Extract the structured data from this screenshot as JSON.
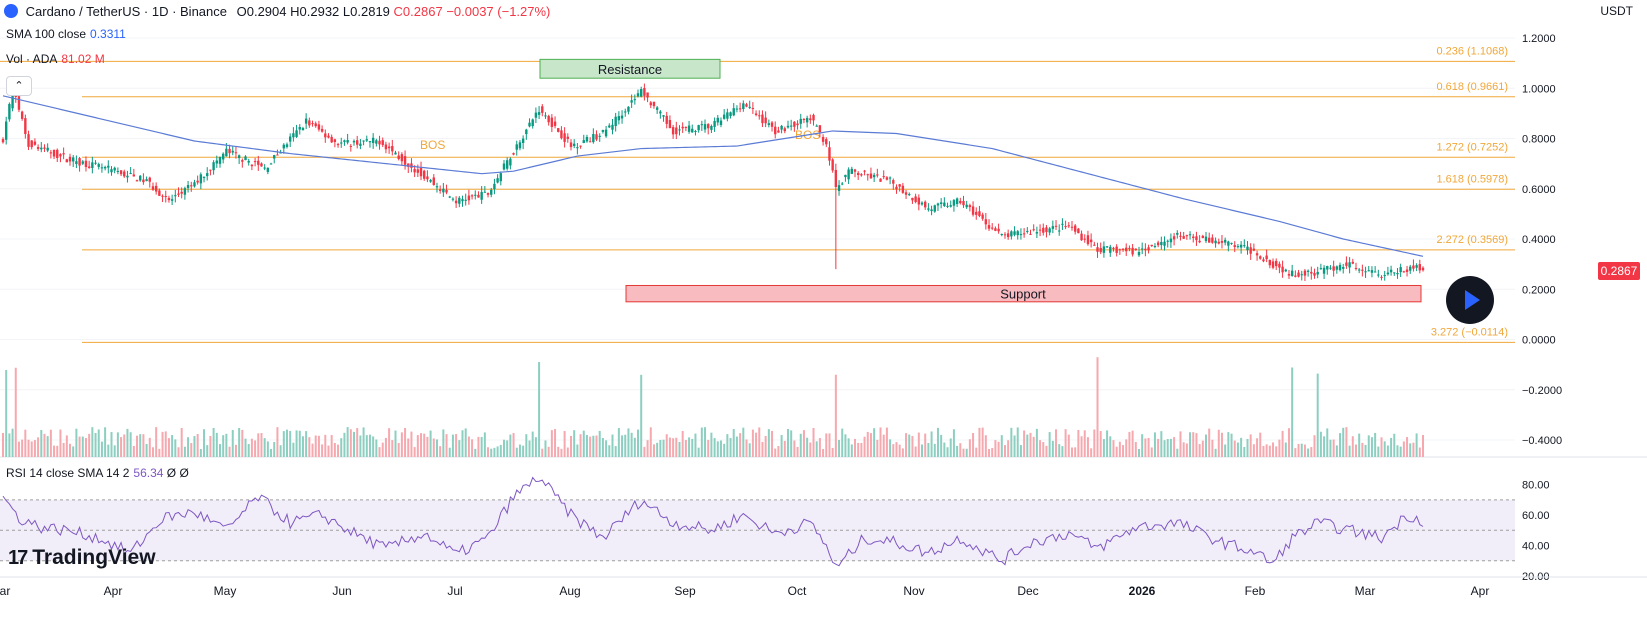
{
  "header": {
    "symbol": "Cardano / TetherUS · 1D · Binance",
    "open": "O0.2904",
    "high": "H0.2932",
    "low": "L0.2819",
    "close": "C0.2867",
    "change": "−0.0037 (−1.27%)"
  },
  "indicators": {
    "sma_label": "SMA 100 close",
    "sma_value": "0.3311",
    "vol_label": "Vol · ADA",
    "vol_value": "81.02 M",
    "rsi_label": "RSI 14 close SMA 14 2",
    "rsi_value": "56.34",
    "rsi_extra": "Ø Ø"
  },
  "currency": "USDT",
  "last_price": "0.2867",
  "brand": "TradingView",
  "icons": {
    "logo": "ada-coin-icon",
    "collapse": "chevron-up-icon",
    "play": "play-icon",
    "brand": "tradingview-logo-icon"
  },
  "colors": {
    "up": "#089981",
    "down": "#f23645",
    "fib": "#f0a73a",
    "sma": "#5b7bd5",
    "rsi": "#7e57c2",
    "resistance_fill": "#c8e6c9",
    "resistance_border": "#4caf50",
    "support_fill": "#f8bbc0",
    "support_border": "#e53935"
  },
  "chart_data": {
    "type": "candlestick",
    "price_axis": {
      "ticks": [
        "1.2000",
        "1.0000",
        "0.8000",
        "0.6000",
        "0.4000",
        "0.2000",
        "0.0000",
        "−0.2000",
        "−0.4000"
      ],
      "tick_values": [
        1.2,
        1.0,
        0.8,
        0.6,
        0.4,
        0.2,
        0.0,
        -0.2,
        -0.4
      ]
    },
    "rsi_axis": {
      "ticks": [
        "80.00",
        "60.00",
        "40.00",
        "20.00"
      ],
      "tick_values": [
        80,
        60,
        40,
        20
      ],
      "bands": [
        70,
        50,
        30
      ]
    },
    "time_axis": [
      "Mar",
      "Apr",
      "May",
      "Jun",
      "Jul",
      "Aug",
      "Sep",
      "Oct",
      "Nov",
      "Dec",
      "2026",
      "Feb",
      "Mar",
      "Apr"
    ],
    "fib_levels": [
      {
        "label": "0.236 (1.1068)",
        "value": 1.1068
      },
      {
        "label": "0.618 (0.9661)",
        "value": 0.9661
      },
      {
        "label": "1.272 (0.7252)",
        "value": 0.7252
      },
      {
        "label": "1.618 (0.5978)",
        "value": 0.5978
      },
      {
        "label": "2.272 (0.3569)",
        "value": 0.3569
      },
      {
        "label": "3.272 (−0.0114)",
        "value": -0.0114
      }
    ],
    "zones": [
      {
        "label": "Resistance",
        "top": 1.115,
        "bottom": 1.04
      },
      {
        "label": "Support",
        "top": 0.215,
        "bottom": 0.15
      }
    ],
    "annotations": [
      {
        "label": "BOS",
        "value": 0.725
      },
      {
        "label": "BOS",
        "value": 0.725
      }
    ],
    "close_anchors": [
      [
        0,
        0.8
      ],
      [
        3,
        1.0
      ],
      [
        8,
        0.78
      ],
      [
        20,
        0.72
      ],
      [
        35,
        0.67
      ],
      [
        45,
        0.63
      ],
      [
        52,
        0.55
      ],
      [
        60,
        0.62
      ],
      [
        70,
        0.75
      ],
      [
        82,
        0.68
      ],
      [
        95,
        0.87
      ],
      [
        105,
        0.78
      ],
      [
        118,
        0.79
      ],
      [
        132,
        0.65
      ],
      [
        142,
        0.55
      ],
      [
        152,
        0.58
      ],
      [
        160,
        0.75
      ],
      [
        168,
        0.92
      ],
      [
        178,
        0.77
      ],
      [
        188,
        0.82
      ],
      [
        200,
        0.99
      ],
      [
        210,
        0.83
      ],
      [
        222,
        0.85
      ],
      [
        232,
        0.94
      ],
      [
        242,
        0.83
      ],
      [
        253,
        0.88
      ],
      [
        258,
        0.78
      ],
      [
        261,
        0.6
      ],
      [
        265,
        0.67
      ],
      [
        278,
        0.63
      ],
      [
        290,
        0.52
      ],
      [
        300,
        0.55
      ],
      [
        313,
        0.41
      ],
      [
        322,
        0.43
      ],
      [
        334,
        0.45
      ],
      [
        343,
        0.36
      ],
      [
        355,
        0.35
      ],
      [
        368,
        0.41
      ],
      [
        382,
        0.39
      ],
      [
        392,
        0.35
      ],
      [
        398,
        0.3
      ],
      [
        404,
        0.26
      ],
      [
        412,
        0.27
      ],
      [
        422,
        0.3
      ],
      [
        432,
        0.26
      ],
      [
        445,
        0.29
      ]
    ],
    "sma_anchors": [
      [
        0,
        0.97
      ],
      [
        30,
        0.88
      ],
      [
        60,
        0.79
      ],
      [
        90,
        0.74
      ],
      [
        120,
        0.7
      ],
      [
        150,
        0.66
      ],
      [
        160,
        0.67
      ],
      [
        180,
        0.73
      ],
      [
        200,
        0.76
      ],
      [
        230,
        0.77
      ],
      [
        260,
        0.83
      ],
      [
        280,
        0.82
      ],
      [
        310,
        0.76
      ],
      [
        340,
        0.66
      ],
      [
        370,
        0.56
      ],
      [
        400,
        0.47
      ],
      [
        420,
        0.4
      ],
      [
        445,
        0.3311
      ]
    ],
    "rsi_anchors": [
      [
        0,
        72
      ],
      [
        5,
        58
      ],
      [
        12,
        52
      ],
      [
        20,
        50
      ],
      [
        30,
        45
      ],
      [
        40,
        35
      ],
      [
        50,
        58
      ],
      [
        60,
        62
      ],
      [
        70,
        50
      ],
      [
        80,
        72
      ],
      [
        90,
        55
      ],
      [
        100,
        60
      ],
      [
        110,
        48
      ],
      [
        120,
        38
      ],
      [
        132,
        48
      ],
      [
        142,
        34
      ],
      [
        152,
        45
      ],
      [
        160,
        72
      ],
      [
        168,
        85
      ],
      [
        178,
        60
      ],
      [
        188,
        45
      ],
      [
        200,
        70
      ],
      [
        210,
        55
      ],
      [
        222,
        50
      ],
      [
        232,
        60
      ],
      [
        242,
        48
      ],
      [
        253,
        55
      ],
      [
        258,
        40
      ],
      [
        261,
        25
      ],
      [
        270,
        45
      ],
      [
        280,
        42
      ],
      [
        290,
        35
      ],
      [
        300,
        45
      ],
      [
        313,
        30
      ],
      [
        322,
        42
      ],
      [
        334,
        48
      ],
      [
        343,
        38
      ],
      [
        355,
        52
      ],
      [
        368,
        55
      ],
      [
        382,
        42
      ],
      [
        392,
        36
      ],
      [
        398,
        28
      ],
      [
        404,
        45
      ],
      [
        412,
        55
      ],
      [
        422,
        50
      ],
      [
        432,
        45
      ],
      [
        440,
        60
      ],
      [
        445,
        56.34
      ]
    ],
    "candle_count": 446
  }
}
